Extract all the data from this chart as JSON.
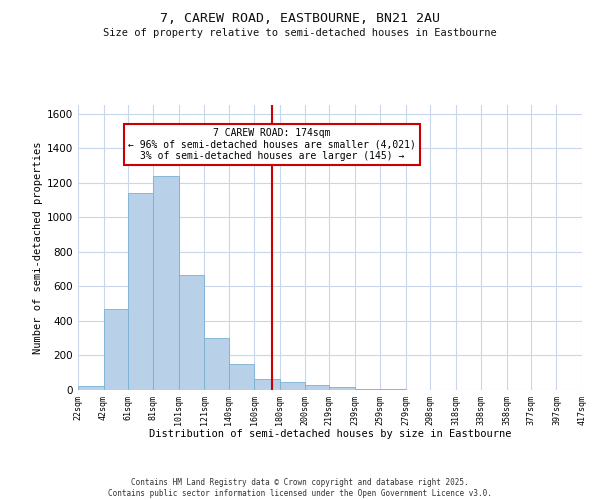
{
  "title": "7, CAREW ROAD, EASTBOURNE, BN21 2AU",
  "subtitle": "Size of property relative to semi-detached houses in Eastbourne",
  "xlabel": "Distribution of semi-detached houses by size in Eastbourne",
  "ylabel": "Number of semi-detached properties",
  "footnote1": "Contains HM Land Registry data © Crown copyright and database right 2025.",
  "footnote2": "Contains public sector information licensed under the Open Government Licence v3.0.",
  "annotation_line1": "7 CAREW ROAD: 174sqm",
  "annotation_line2": "← 96% of semi-detached houses are smaller (4,021)",
  "annotation_line3": "3% of semi-detached houses are larger (145) →",
  "property_size": 174,
  "bar_color": "#b8d0e8",
  "bar_edge_color": "#7aafd4",
  "vline_color": "#cc0000",
  "annotation_box_color": "#cc0000",
  "background_color": "#ffffff",
  "grid_color": "#c8d8ea",
  "bin_edges": [
    22,
    42,
    61,
    81,
    101,
    121,
    140,
    160,
    180,
    200,
    219,
    239,
    259,
    279,
    298,
    318,
    338,
    358,
    377,
    397,
    417
  ],
  "bin_labels": [
    "22sqm",
    "42sqm",
    "61sqm",
    "81sqm",
    "101sqm",
    "121sqm",
    "140sqm",
    "160sqm",
    "180sqm",
    "200sqm",
    "219sqm",
    "239sqm",
    "259sqm",
    "279sqm",
    "298sqm",
    "318sqm",
    "338sqm",
    "358sqm",
    "377sqm",
    "397sqm",
    "417sqm"
  ],
  "counts": [
    25,
    470,
    1140,
    1240,
    665,
    300,
    150,
    65,
    45,
    30,
    15,
    5,
    3,
    2,
    1,
    1,
    0,
    0,
    0,
    0
  ],
  "ylim": [
    0,
    1650
  ],
  "yticks": [
    0,
    200,
    400,
    600,
    800,
    1000,
    1200,
    1400,
    1600
  ]
}
